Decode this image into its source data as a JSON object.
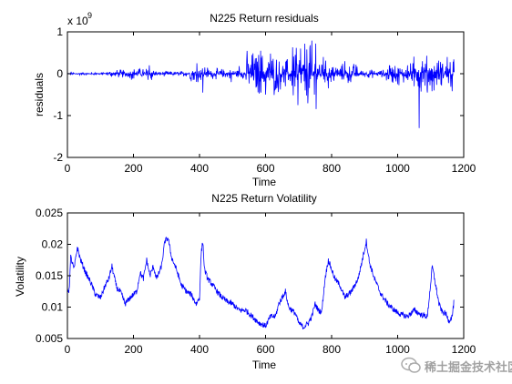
{
  "colors": {
    "series": "#0000ff",
    "axes": "#000000",
    "background": "#ffffff"
  },
  "watermark": {
    "text": "稀土掘金技术社区",
    "icon": "chat-bubble-icon"
  },
  "chart_data": [
    {
      "type": "line",
      "title": "N225  Return residuals",
      "xlabel": "Time",
      "ylabel": "residuals",
      "exponent_base": "x 10",
      "exponent_power": "9",
      "xlim": [
        0,
        1200
      ],
      "ylim": [
        -2,
        1
      ],
      "xticks": [
        0,
        200,
        400,
        600,
        800,
        1000,
        1200
      ],
      "yticks": [
        -2,
        -1,
        0,
        1
      ],
      "grid": false,
      "legend": "none",
      "series": [
        {
          "n_points": 1172,
          "baseline": 0.0,
          "envelope": [
            {
              "x": [
                0,
                120
              ],
              "amp": 0.03
            },
            {
              "x": [
                120,
                190
              ],
              "amp": 0.08
            },
            {
              "x": [
                190,
                270
              ],
              "amp": 0.12
            },
            {
              "x": [
                270,
                370
              ],
              "amp": 0.05
            },
            {
              "x": [
                370,
                430
              ],
              "amp": 0.15
            },
            {
              "x": [
                430,
                540
              ],
              "amp": 0.1
            },
            {
              "x": [
                540,
                640
              ],
              "amp": 0.45
            },
            {
              "x": [
                640,
                680
              ],
              "amp": 0.3
            },
            {
              "x": [
                680,
                760
              ],
              "amp": 0.6
            },
            {
              "x": [
                760,
                820
              ],
              "amp": 0.25
            },
            {
              "x": [
                820,
                880
              ],
              "amp": 0.2
            },
            {
              "x": [
                880,
                960
              ],
              "amp": 0.08
            },
            {
              "x": [
                960,
                1040
              ],
              "amp": 0.2
            },
            {
              "x": [
                1040,
                1100
              ],
              "amp": 0.35
            },
            {
              "x": [
                1100,
                1172
              ],
              "amp": 0.3
            }
          ],
          "spikes": [
            {
              "x": 248,
              "y": 0.2
            },
            {
              "x": 255,
              "y": -0.15
            },
            {
              "x": 392,
              "y": 0.25
            },
            {
              "x": 410,
              "y": -0.45
            },
            {
              "x": 496,
              "y": -0.2
            },
            {
              "x": 520,
              "y": 0.18
            },
            {
              "x": 585,
              "y": 0.55
            },
            {
              "x": 600,
              "y": -0.5
            },
            {
              "x": 615,
              "y": 0.48
            },
            {
              "x": 628,
              "y": -0.4
            },
            {
              "x": 660,
              "y": -0.3
            },
            {
              "x": 690,
              "y": 0.45
            },
            {
              "x": 698,
              "y": -0.75
            },
            {
              "x": 706,
              "y": 0.6
            },
            {
              "x": 720,
              "y": -0.4
            },
            {
              "x": 735,
              "y": 0.68
            },
            {
              "x": 748,
              "y": -0.5
            },
            {
              "x": 752,
              "y": 0.72
            },
            {
              "x": 775,
              "y": 0.4
            },
            {
              "x": 790,
              "y": -0.35
            },
            {
              "x": 840,
              "y": 0.3
            },
            {
              "x": 850,
              "y": -0.22
            },
            {
              "x": 1000,
              "y": -0.25
            },
            {
              "x": 1030,
              "y": 0.2
            },
            {
              "x": 1050,
              "y": -0.3
            },
            {
              "x": 1065,
              "y": -1.3
            },
            {
              "x": 1075,
              "y": 0.3
            },
            {
              "x": 1090,
              "y": -0.45
            },
            {
              "x": 1110,
              "y": -0.4
            },
            {
              "x": 1130,
              "y": 0.28
            },
            {
              "x": 1150,
              "y": 0.4
            },
            {
              "x": 1165,
              "y": -0.42
            }
          ]
        }
      ]
    },
    {
      "type": "line",
      "title": "N225 Return Volatility",
      "xlabel": "Time",
      "ylabel": "Volatility",
      "xlim": [
        0,
        1200
      ],
      "ylim": [
        0.005,
        0.025
      ],
      "xticks": [
        0,
        200,
        400,
        600,
        800,
        1000,
        1200
      ],
      "yticks": [
        0.005,
        0.01,
        0.015,
        0.02,
        0.025
      ],
      "ytick_labels": [
        "0.005",
        "0.01",
        "0.015",
        "0.02",
        "0.025"
      ],
      "grid": false,
      "legend": "none",
      "series": [
        {
          "n_points": 1172,
          "x": [
            0,
            5,
            10,
            20,
            30,
            40,
            55,
            70,
            85,
            100,
            115,
            125,
            135,
            145,
            150,
            160,
            175,
            190,
            200,
            210,
            220,
            230,
            240,
            250,
            260,
            270,
            285,
            295,
            305,
            315,
            330,
            345,
            360,
            375,
            390,
            400,
            405,
            410,
            415,
            425,
            440,
            460,
            480,
            500,
            520,
            540,
            560,
            580,
            600,
            615,
            630,
            640,
            650,
            660,
            670,
            690,
            700,
            715,
            730,
            740,
            750,
            760,
            770,
            780,
            790,
            800,
            810,
            825,
            840,
            860,
            880,
            895,
            905,
            915,
            930,
            950,
            970,
            990,
            1010,
            1030,
            1050,
            1070,
            1090,
            1105,
            1115,
            1125,
            1135,
            1145,
            1155,
            1165,
            1172
          ],
          "y": [
            0.013,
            0.0125,
            0.018,
            0.016,
            0.0195,
            0.0175,
            0.0155,
            0.014,
            0.012,
            0.0115,
            0.0135,
            0.0145,
            0.0165,
            0.014,
            0.013,
            0.0125,
            0.0105,
            0.0115,
            0.012,
            0.0125,
            0.0155,
            0.0145,
            0.0175,
            0.015,
            0.0165,
            0.0145,
            0.0165,
            0.0205,
            0.021,
            0.018,
            0.016,
            0.0135,
            0.0125,
            0.012,
            0.0105,
            0.0115,
            0.0185,
            0.0205,
            0.016,
            0.0145,
            0.0135,
            0.012,
            0.011,
            0.0105,
            0.0095,
            0.0095,
            0.0085,
            0.0075,
            0.007,
            0.0085,
            0.0085,
            0.0105,
            0.0115,
            0.0125,
            0.01,
            0.009,
            0.0075,
            0.0068,
            0.0075,
            0.0085,
            0.0105,
            0.0095,
            0.0092,
            0.0145,
            0.0175,
            0.016,
            0.0145,
            0.0135,
            0.0115,
            0.0125,
            0.0145,
            0.018,
            0.0205,
            0.017,
            0.0145,
            0.012,
            0.0105,
            0.0095,
            0.0088,
            0.0085,
            0.0095,
            0.0088,
            0.0085,
            0.0165,
            0.0135,
            0.0105,
            0.0092,
            0.009,
            0.0078,
            0.0085,
            0.0115
          ]
        }
      ]
    }
  ]
}
